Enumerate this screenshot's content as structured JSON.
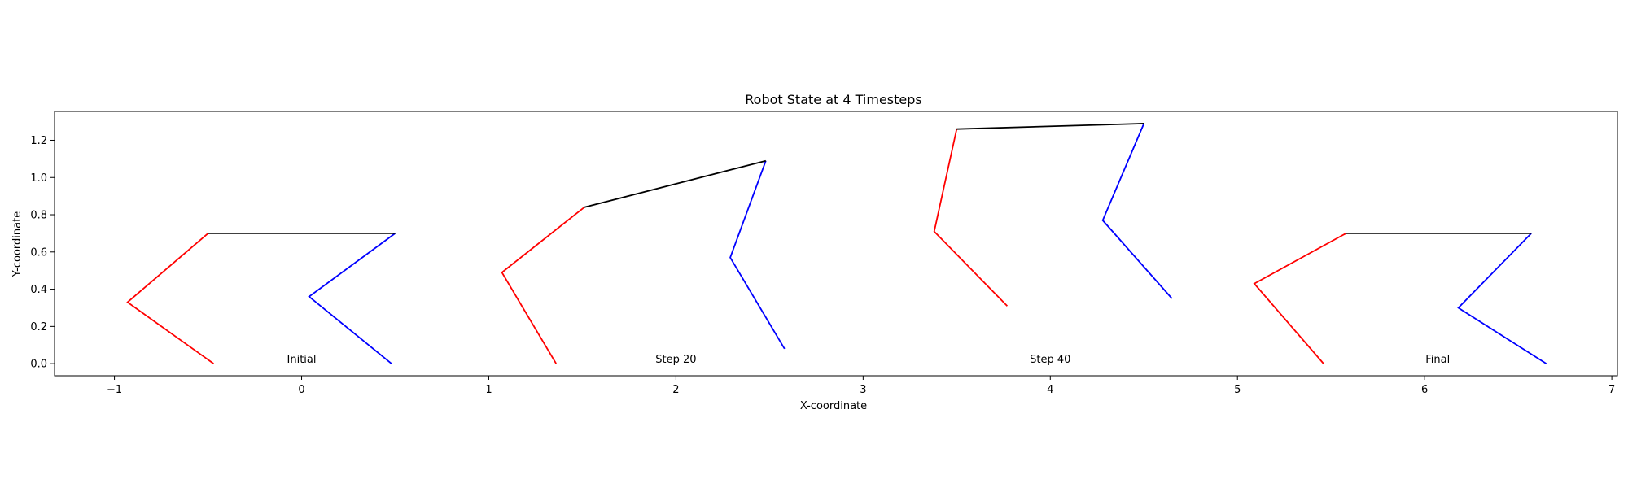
{
  "chart_data": {
    "type": "line",
    "title": "Robot State at 4 Timesteps",
    "xlabel": "X-coordinate",
    "ylabel": "Y-coordinate",
    "xlim": [
      -1.32,
      7.03
    ],
    "ylim": [
      -0.065,
      1.355
    ],
    "x_ticks": [
      -1,
      0,
      1,
      2,
      3,
      4,
      5,
      6,
      7
    ],
    "y_ticks": [
      0.0,
      0.2,
      0.4,
      0.6,
      0.8,
      1.0,
      1.2
    ],
    "x_tick_labels": [
      "−1",
      "0",
      "1",
      "2",
      "3",
      "4",
      "5",
      "6",
      "7"
    ],
    "y_tick_labels": [
      "0.0",
      "0.2",
      "0.4",
      "0.6",
      "0.8",
      "1.0",
      "1.2"
    ],
    "grid": false,
    "colors": {
      "left_leg": "#ff0000",
      "right_leg": "#0000ff",
      "body": "#000000"
    },
    "timesteps": [
      {
        "label": "Initial",
        "label_pos": [
          0.0,
          0.0
        ],
        "left_leg": [
          [
            -0.5,
            0.7
          ],
          [
            -0.93,
            0.33
          ],
          [
            -0.47,
            0.0
          ]
        ],
        "right_leg": [
          [
            0.5,
            0.7
          ],
          [
            0.04,
            0.36
          ],
          [
            0.48,
            0.0
          ]
        ],
        "body": [
          [
            -0.5,
            0.7
          ],
          [
            0.5,
            0.7
          ]
        ]
      },
      {
        "label": "Step 20",
        "label_pos": [
          2.0,
          0.0
        ],
        "left_leg": [
          [
            1.51,
            0.84
          ],
          [
            1.07,
            0.49
          ],
          [
            1.36,
            0.0
          ]
        ],
        "right_leg": [
          [
            2.48,
            1.09
          ],
          [
            2.29,
            0.57
          ],
          [
            2.58,
            0.08
          ]
        ],
        "body": [
          [
            1.51,
            0.84
          ],
          [
            2.48,
            1.09
          ]
        ]
      },
      {
        "label": "Step 40",
        "label_pos": [
          4.0,
          0.0
        ],
        "left_leg": [
          [
            3.5,
            1.26
          ],
          [
            3.38,
            0.71
          ],
          [
            3.77,
            0.31
          ]
        ],
        "right_leg": [
          [
            4.5,
            1.29
          ],
          [
            4.28,
            0.77
          ],
          [
            4.65,
            0.35
          ]
        ],
        "body": [
          [
            3.5,
            1.26
          ],
          [
            4.5,
            1.29
          ]
        ]
      },
      {
        "label": "Final",
        "label_pos": [
          6.07,
          0.0
        ],
        "left_leg": [
          [
            5.58,
            0.7
          ],
          [
            5.09,
            0.43
          ],
          [
            5.46,
            0.0
          ]
        ],
        "right_leg": [
          [
            6.57,
            0.7
          ],
          [
            6.18,
            0.3
          ],
          [
            6.65,
            0.0
          ]
        ],
        "body": [
          [
            5.58,
            0.7
          ],
          [
            6.57,
            0.7
          ]
        ]
      }
    ]
  }
}
